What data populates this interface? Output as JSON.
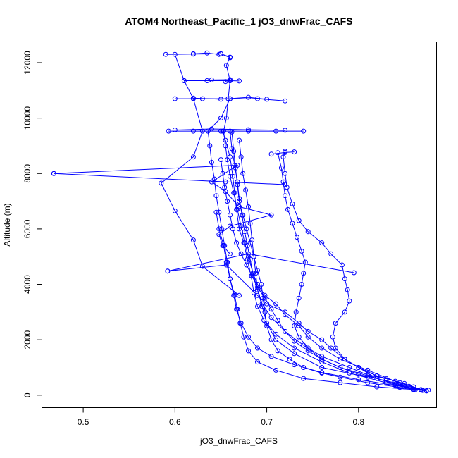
{
  "chart_data": {
    "type": "line",
    "title": "ATOM4 Northeast_Pacific_1 jO3_dnwFrac_CAFS",
    "xlabel": "jO3_dnwFrac_CAFS",
    "ylabel": "Altitude (m)",
    "xlim": [
      0.455,
      0.885
    ],
    "ylim": [
      -450,
      12750
    ],
    "xticks": [
      "0.5",
      "0.6",
      "0.7",
      "0.8"
    ],
    "yticks": [
      "0",
      "2000",
      "4000",
      "6000",
      "8000",
      "10000",
      "12000"
    ],
    "grid": false,
    "legend": "none",
    "series_color": "#0000ff",
    "series": [
      {
        "points": [
          [
            0.876,
            180
          ],
          [
            0.85,
            300
          ],
          [
            0.82,
            600
          ],
          [
            0.79,
            1000
          ],
          [
            0.76,
            1400
          ],
          [
            0.74,
            1800
          ],
          [
            0.72,
            2300
          ],
          [
            0.705,
            2800
          ],
          [
            0.695,
            3300
          ],
          [
            0.69,
            3800
          ],
          [
            0.685,
            4400
          ],
          [
            0.68,
            5000
          ],
          [
            0.676,
            5500
          ],
          [
            0.672,
            6100
          ],
          [
            0.668,
            6700
          ],
          [
            0.664,
            7300
          ],
          [
            0.66,
            7900
          ],
          [
            0.657,
            8500
          ],
          [
            0.655,
            9000
          ],
          [
            0.653,
            9530
          ],
          [
            0.656,
            10000
          ],
          [
            0.658,
            10700
          ],
          [
            0.66,
            11350
          ],
          [
            0.656,
            11900
          ],
          [
            0.66,
            12200
          ],
          [
            0.65,
            12320
          ]
        ]
      },
      {
        "points": [
          [
            0.862,
            200
          ],
          [
            0.83,
            450
          ],
          [
            0.79,
            800
          ],
          [
            0.76,
            1200
          ],
          [
            0.73,
            1700
          ],
          [
            0.71,
            2200
          ],
          [
            0.697,
            2700
          ],
          [
            0.69,
            3200
          ],
          [
            0.686,
            3700
          ],
          [
            0.683,
            4300
          ],
          [
            0.679,
            4900
          ],
          [
            0.675,
            5500
          ],
          [
            0.67,
            6000
          ],
          [
            0.667,
            6700
          ],
          [
            0.665,
            7300
          ],
          [
            0.663,
            7900
          ],
          [
            0.66,
            8600
          ],
          [
            0.655,
            9200
          ],
          [
            0.652,
            9530
          ]
        ]
      },
      {
        "points": [
          [
            0.87,
            170
          ],
          [
            0.84,
            350
          ],
          [
            0.8,
            560
          ],
          [
            0.76,
            820
          ],
          [
            0.73,
            1100
          ],
          [
            0.705,
            1400
          ],
          [
            0.69,
            1700
          ],
          [
            0.68,
            2100
          ],
          [
            0.672,
            2600
          ],
          [
            0.667,
            3100
          ],
          [
            0.664,
            3600
          ],
          [
            0.66,
            4200
          ],
          [
            0.657,
            4800
          ],
          [
            0.654,
            5400
          ],
          [
            0.651,
            6000
          ],
          [
            0.648,
            6600
          ],
          [
            0.645,
            7200
          ],
          [
            0.643,
            7800
          ],
          [
            0.64,
            8400
          ],
          [
            0.638,
            9000
          ],
          [
            0.636,
            9530
          ],
          [
            0.65,
            10000
          ],
          [
            0.66,
            10700
          ]
        ]
      },
      {
        "points": [
          [
            0.86,
            220
          ],
          [
            0.84,
            500
          ],
          [
            0.81,
            900
          ],
          [
            0.78,
            1300
          ],
          [
            0.76,
            1700
          ],
          [
            0.745,
            2100
          ],
          [
            0.735,
            2500
          ],
          [
            0.72,
            2900
          ],
          [
            0.71,
            3300
          ],
          [
            0.698,
            3600
          ],
          [
            0.69,
            4000
          ],
          [
            0.685,
            4400
          ],
          [
            0.682,
            4900
          ],
          [
            0.679,
            5400
          ],
          [
            0.676,
            5900
          ],
          [
            0.673,
            6500
          ],
          [
            0.67,
            7100
          ],
          [
            0.668,
            7700
          ],
          [
            0.665,
            8300
          ],
          [
            0.662,
            8900
          ],
          [
            0.66,
            9530
          ]
        ]
      },
      {
        "points": [
          [
            0.874,
            160
          ],
          [
            0.855,
            320
          ],
          [
            0.83,
            520
          ],
          [
            0.8,
            750
          ],
          [
            0.78,
            1000
          ],
          [
            0.76,
            1300
          ],
          [
            0.745,
            1600
          ],
          [
            0.73,
            1950
          ],
          [
            0.72,
            2300
          ],
          [
            0.712,
            2700
          ],
          [
            0.705,
            3100
          ],
          [
            0.698,
            3500
          ],
          [
            0.69,
            3900
          ],
          [
            0.684,
            4300
          ],
          [
            0.678,
            4700
          ],
          [
            0.672,
            5100
          ],
          [
            0.667,
            5500
          ],
          [
            0.663,
            6000
          ],
          [
            0.66,
            6500
          ],
          [
            0.657,
            7000
          ],
          [
            0.654,
            7500
          ],
          [
            0.652,
            8000
          ],
          [
            0.65,
            8500
          ]
        ]
      },
      {
        "points": [
          [
            0.86,
            200
          ],
          [
            0.82,
            300
          ],
          [
            0.78,
            450
          ],
          [
            0.74,
            600
          ],
          [
            0.71,
            900
          ],
          [
            0.69,
            1200
          ],
          [
            0.68,
            1600
          ],
          [
            0.675,
            2100
          ],
          [
            0.671,
            2600
          ],
          [
            0.668,
            3100
          ],
          [
            0.665,
            3600
          ],
          [
            0.66,
            4200
          ],
          [
            0.656,
            4800
          ],
          [
            0.653,
            5400
          ],
          [
            0.648,
            6000
          ],
          [
            0.645,
            6600
          ]
        ]
      },
      {
        "points": [
          [
            0.868,
            190
          ],
          [
            0.85,
            420
          ],
          [
            0.82,
            700
          ],
          [
            0.8,
            1000
          ],
          [
            0.785,
            1300
          ],
          [
            0.775,
            1700
          ],
          [
            0.772,
            2100
          ],
          [
            0.775,
            2600
          ],
          [
            0.785,
            3000
          ],
          [
            0.79,
            3400
          ],
          [
            0.788,
            3800
          ],
          [
            0.785,
            4200
          ],
          [
            0.782,
            4700
          ],
          [
            0.77,
            5100
          ],
          [
            0.76,
            5500
          ],
          [
            0.745,
            5900
          ],
          [
            0.735,
            6300
          ],
          [
            0.728,
            6900
          ],
          [
            0.722,
            7500
          ],
          [
            0.72,
            8000
          ],
          [
            0.718,
            8600
          ],
          [
            0.72,
            8800
          ]
        ]
      },
      {
        "points": [
          [
            0.87,
            170
          ],
          [
            0.84,
            400
          ],
          [
            0.81,
            700
          ],
          [
            0.78,
            1000
          ],
          [
            0.76,
            1300
          ],
          [
            0.745,
            1700
          ],
          [
            0.735,
            2100
          ],
          [
            0.73,
            2500
          ],
          [
            0.732,
            3000
          ],
          [
            0.735,
            3500
          ],
          [
            0.738,
            4000
          ],
          [
            0.74,
            4400
          ],
          [
            0.742,
            4800
          ],
          [
            0.738,
            5200
          ],
          [
            0.733,
            5700
          ],
          [
            0.728,
            6200
          ],
          [
            0.723,
            6700
          ],
          [
            0.72,
            7200
          ],
          [
            0.718,
            7700
          ],
          [
            0.716,
            8200
          ],
          [
            0.712,
            8750
          ]
        ]
      },
      {
        "points": [
          [
            0.874,
            150
          ],
          [
            0.845,
            280
          ],
          [
            0.81,
            450
          ],
          [
            0.78,
            650
          ],
          [
            0.76,
            800
          ],
          [
            0.74,
            1000
          ],
          [
            0.725,
            1300
          ],
          [
            0.712,
            1600
          ],
          [
            0.705,
            2000
          ],
          [
            0.7,
            2500
          ],
          [
            0.698,
            3000
          ],
          [
            0.696,
            3500
          ],
          [
            0.694,
            4000
          ],
          [
            0.69,
            4500
          ],
          [
            0.686,
            5000
          ],
          [
            0.682,
            5500
          ],
          [
            0.678,
            6000
          ],
          [
            0.674,
            6500
          ],
          [
            0.67,
            7000
          ],
          [
            0.668,
            7600
          ],
          [
            0.666,
            8200
          ],
          [
            0.664,
            8800
          ],
          [
            0.662,
            9500
          ]
        ]
      },
      {
        "points": [
          [
            0.81,
            650
          ],
          [
            0.76,
            1000
          ],
          [
            0.73,
            1500
          ],
          [
            0.71,
            2000
          ],
          [
            0.7,
            2600
          ],
          [
            0.695,
            3200
          ],
          [
            0.69,
            3800
          ],
          [
            0.688,
            4400
          ],
          [
            0.686,
            5000
          ],
          [
            0.684,
            5600
          ],
          [
            0.682,
            6200
          ],
          [
            0.68,
            6800
          ],
          [
            0.677,
            7400
          ],
          [
            0.674,
            8000
          ],
          [
            0.672,
            8600
          ],
          [
            0.67,
            9200
          ]
        ]
      },
      {
        "points": [
          [
            0.592,
            4480
          ],
          [
            0.656,
            4700
          ],
          [
            0.69,
            3600
          ],
          [
            0.7,
            3300
          ],
          [
            0.72,
            3000
          ],
          [
            0.735,
            2600
          ],
          [
            0.745,
            2300
          ],
          [
            0.76,
            2000
          ],
          [
            0.77,
            1700
          ],
          [
            0.785,
            1300
          ],
          [
            0.8,
            1000
          ],
          [
            0.815,
            700
          ],
          [
            0.83,
            600
          ],
          [
            0.845,
            450
          ],
          [
            0.86,
            300
          ],
          [
            0.868,
            200
          ]
        ]
      },
      {
        "points": [
          [
            0.592,
            4480
          ],
          [
            0.68,
            5100
          ],
          [
            0.795,
            4420
          ]
        ]
      },
      {
        "points": [
          [
            0.67,
            3600
          ],
          [
            0.63,
            4650
          ],
          [
            0.62,
            5600
          ],
          [
            0.6,
            6650
          ],
          [
            0.585,
            7650
          ],
          [
            0.62,
            8600
          ],
          [
            0.63,
            9530
          ],
          [
            0.62,
            10700
          ],
          [
            0.61,
            11350
          ],
          [
            0.6,
            12300
          ]
        ]
      },
      {
        "points": [
          [
            0.468,
            8000
          ],
          [
            0.668,
            8300
          ],
          [
            0.64,
            7700
          ],
          [
            0.655,
            7350
          ],
          [
            0.67,
            6800
          ],
          [
            0.705,
            6500
          ],
          [
            0.66,
            6100
          ],
          [
            0.648,
            5800
          ],
          [
            0.652,
            5400
          ],
          [
            0.66,
            5100
          ]
        ]
      },
      {
        "points": [
          [
            0.468,
            8000
          ],
          [
            0.655,
            7700
          ],
          [
            0.72,
            7600
          ]
        ]
      },
      {
        "points": [
          [
            0.593,
            9530
          ],
          [
            0.62,
            9530
          ],
          [
            0.65,
            9530
          ],
          [
            0.68,
            9530
          ],
          [
            0.71,
            9530
          ],
          [
            0.74,
            9530
          ]
        ]
      },
      {
        "points": [
          [
            0.6,
            10700
          ],
          [
            0.63,
            10700
          ],
          [
            0.66,
            10700
          ],
          [
            0.69,
            10700
          ],
          [
            0.72,
            10620
          ]
        ]
      },
      {
        "points": [
          [
            0.61,
            11350
          ],
          [
            0.635,
            11350
          ],
          [
            0.66,
            11350
          ],
          [
            0.67,
            11340
          ]
        ]
      },
      {
        "points": [
          [
            0.59,
            12300
          ],
          [
            0.62,
            12310
          ],
          [
            0.65,
            12320
          ],
          [
            0.66,
            12180
          ]
        ]
      },
      {
        "points": [
          [
            0.6,
            9570
          ],
          [
            0.64,
            9610
          ],
          [
            0.68,
            9580
          ],
          [
            0.72,
            9560
          ]
        ]
      },
      {
        "points": [
          [
            0.62,
            10720
          ],
          [
            0.65,
            10680
          ],
          [
            0.68,
            10750
          ],
          [
            0.7,
            10680
          ]
        ]
      },
      {
        "points": [
          [
            0.64,
            11380
          ],
          [
            0.66,
            11390
          ],
          [
            0.655,
            11320
          ]
        ]
      },
      {
        "points": [
          [
            0.62,
            12320
          ],
          [
            0.635,
            12350
          ],
          [
            0.648,
            12300
          ]
        ]
      },
      {
        "points": [
          [
            0.705,
            8700
          ],
          [
            0.72,
            8760
          ],
          [
            0.73,
            8780
          ]
        ]
      }
    ]
  }
}
